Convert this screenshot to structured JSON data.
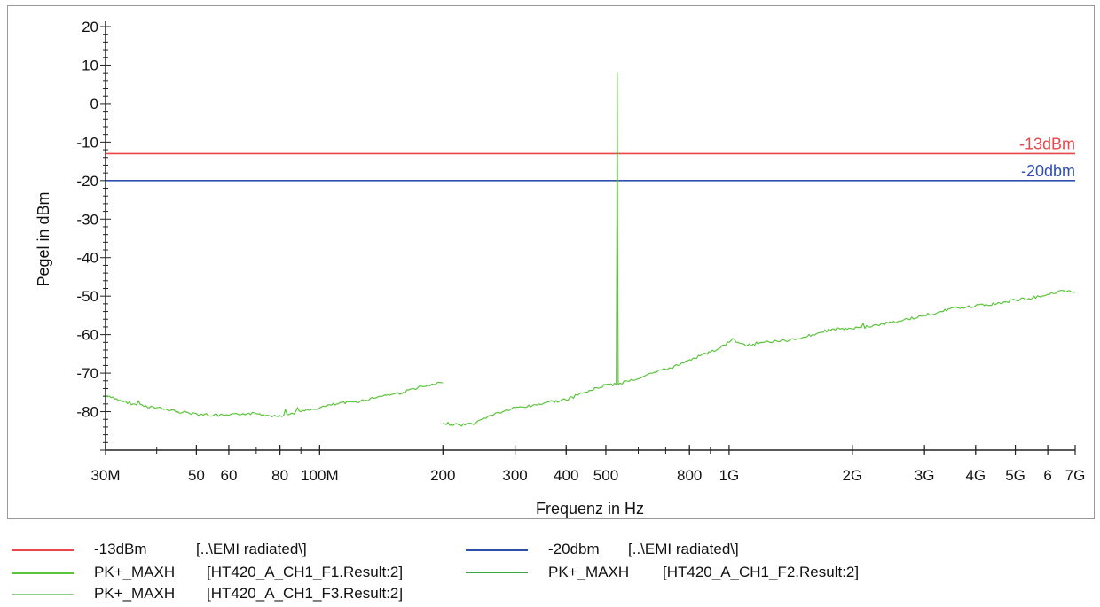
{
  "chart_data": {
    "type": "line",
    "xlabel": "Frequenz in Hz",
    "ylabel": "Pegel in dBm",
    "xscale": "log",
    "xlim": [
      30000000,
      7000000000
    ],
    "ylim": [
      -90,
      20
    ],
    "yticks": [
      20,
      10,
      0,
      -10,
      -20,
      -30,
      -40,
      -50,
      -60,
      -70,
      -80
    ],
    "ytick_labels": [
      "20",
      "10",
      "0",
      "-10",
      "-20",
      "-30",
      "-40",
      "-50",
      "-60",
      "-70",
      "-80"
    ],
    "xticks": [
      30000000,
      50000000,
      60000000,
      80000000,
      100000000,
      200000000,
      300000000,
      400000000,
      500000000,
      800000000,
      1000000000,
      2000000000,
      3000000000,
      4000000000,
      5000000000,
      6000000000,
      7000000000
    ],
    "xtick_labels": [
      "30M",
      "50",
      "60",
      "80",
      "100M",
      "200",
      "300",
      "400",
      "500",
      "800",
      "1G",
      "2G",
      "3G",
      "4G",
      "5G",
      "6",
      "7G"
    ],
    "grid": false,
    "limit_lines": [
      {
        "label": "-13dBm",
        "y": -13,
        "color": "#e8464a"
      },
      {
        "label": "-20dbm",
        "y": -20,
        "color": "#2f4fb0"
      }
    ],
    "series": [
      {
        "name": "PK+_MAXH",
        "color": "#5cc43c",
        "x": [
          30000000,
          35000000,
          40000000,
          45000000,
          50000000,
          55000000,
          60000000,
          65000000,
          70000000,
          75000000,
          80000000,
          85000000,
          90000000,
          95000000,
          100000000,
          110000000,
          120000000,
          130000000,
          140000000,
          150000000,
          160000000,
          170000000,
          180000000,
          190000000,
          200000000
        ],
        "y": [
          -76,
          -78,
          -79,
          -80,
          -80.5,
          -81,
          -81,
          -80.5,
          -80.5,
          -81,
          -81,
          -80.5,
          -80,
          -79.5,
          -79,
          -78,
          -77.5,
          -77,
          -76,
          -75.5,
          -75,
          -74,
          -73.5,
          -73,
          -72.5
        ]
      },
      {
        "name": "PK+_MAXH",
        "color": "#5cc43c",
        "x": [
          200000000,
          220000000,
          240000000,
          260000000,
          280000000,
          300000000,
          330000000,
          360000000,
          400000000,
          430000000,
          460000000,
          500000000,
          530000000,
          532000000,
          533000000,
          534000000,
          536000000,
          560000000,
          600000000,
          650000000,
          700000000,
          750000000,
          800000000,
          850000000,
          900000000,
          950000000,
          1000000000,
          1020000000,
          1050000000,
          1100000000,
          1200000000,
          1400000000,
          1600000000,
          1800000000,
          2000000000,
          2300000000,
          2600000000,
          3000000000,
          3300000000,
          3600000000,
          4000000000,
          4500000000,
          5000000000,
          5500000000,
          6000000000,
          6500000000,
          7000000000
        ],
        "y": [
          -83,
          -83.5,
          -83,
          -81,
          -80,
          -79,
          -78.5,
          -77.5,
          -77,
          -75.5,
          -74.5,
          -73,
          -73,
          -30,
          8,
          -30,
          -73,
          -72,
          -71.5,
          -70,
          -69,
          -68,
          -66.5,
          -65.5,
          -64.5,
          -63.5,
          -62,
          -61,
          -62,
          -63,
          -62,
          -61.5,
          -60,
          -58.5,
          -58.5,
          -57.5,
          -56.5,
          -55,
          -54,
          -53,
          -52.5,
          -52,
          -51,
          -50.5,
          -49.5,
          -48.5,
          -49
        ]
      },
      {
        "name": "PK+_MAXH",
        "color": "#8fd08f",
        "x": [],
        "y": []
      },
      {
        "name": "PK+_MAXH",
        "color": "#3aa53a",
        "x": [],
        "y": []
      }
    ]
  },
  "legend": [
    {
      "trace": "-13dBm",
      "source": "[..\\EMI radiated\\]",
      "color": "#e8464a"
    },
    {
      "trace": "-20dbm",
      "source": "[..\\EMI radiated\\]",
      "color": "#2f4fb0"
    },
    {
      "trace": "PK+_MAXH",
      "source": "[HT420_A_CH1_F1.Result:2]",
      "color": "#5cc43c"
    },
    {
      "trace": "PK+_MAXH",
      "source": "[HT420_A_CH1_F2.Result:2]",
      "color": "#3aa53a"
    },
    {
      "trace": "PK+_MAXH",
      "source": "[HT420_A_CH1_F3.Result:2]",
      "color": "#8fd08f"
    }
  ]
}
